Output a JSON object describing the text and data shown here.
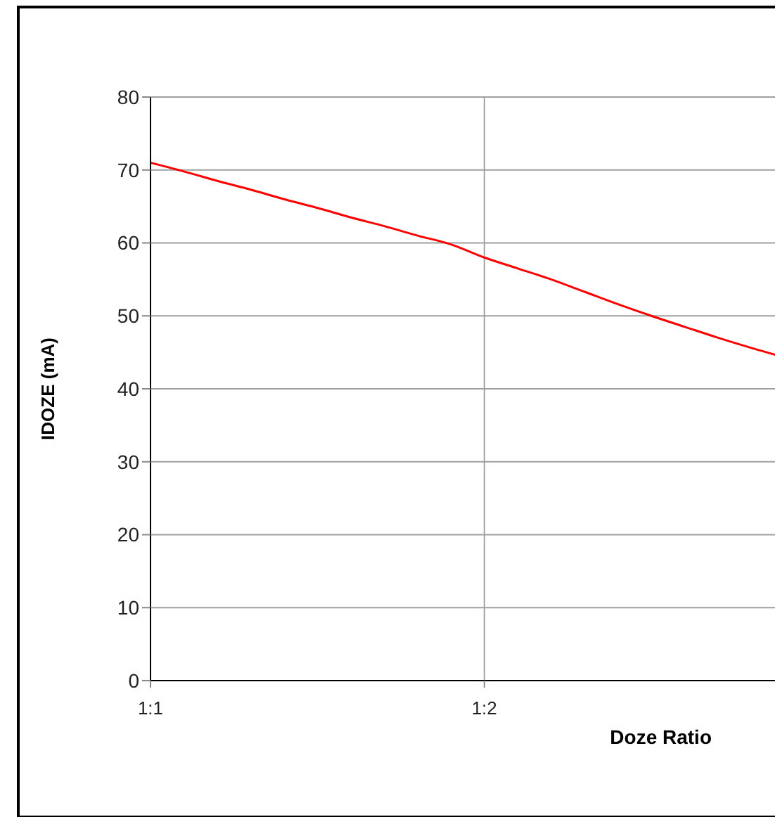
{
  "chart_data": {
    "type": "line",
    "xlabel": "Doze Ratio",
    "ylabel": "IDOZE (mA)",
    "categories": [
      "1:1",
      null,
      null,
      null,
      null,
      null,
      null,
      null,
      null,
      null,
      "1:2",
      null,
      null,
      null,
      null,
      null,
      null,
      null,
      null,
      null
    ],
    "series": [
      {
        "color": "#ff0000",
        "values": [
          71,
          69.8,
          68.5,
          67.3,
          66,
          64.8,
          63.5,
          62.3,
          61,
          59.8,
          58,
          56.5,
          55,
          53.3,
          51.6,
          50,
          48.5,
          47,
          45.6,
          44.3
        ]
      }
    ],
    "ylim": [
      0,
      80
    ],
    "yticks": [
      0,
      10,
      20,
      30,
      40,
      50,
      60,
      70,
      80
    ],
    "grid": true,
    "marker": "none",
    "line_style": "solid"
  }
}
